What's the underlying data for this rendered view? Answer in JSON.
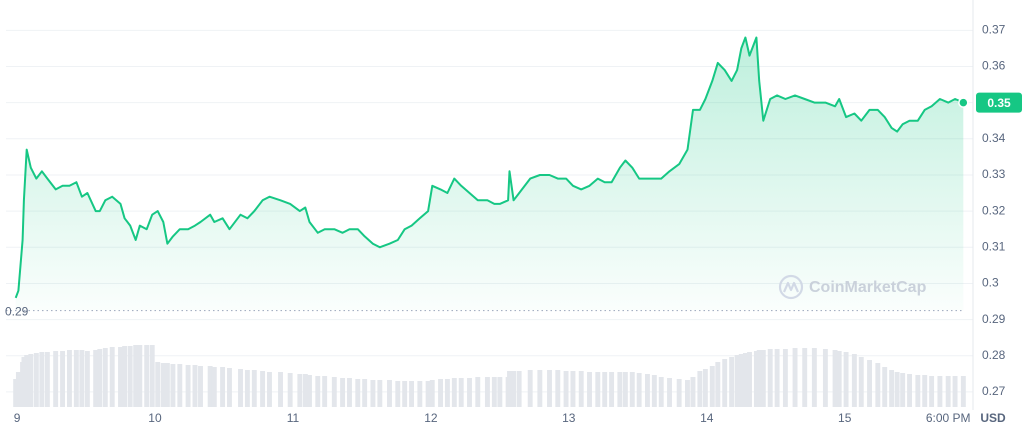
{
  "chart_data": {
    "type": "area",
    "color": "#16c784",
    "x": [
      8.99,
      9.01,
      9.04,
      9.05,
      9.07,
      9.1,
      9.14,
      9.18,
      9.22,
      9.28,
      9.33,
      9.38,
      9.43,
      9.47,
      9.51,
      9.57,
      9.6,
      9.64,
      9.69,
      9.75,
      9.78,
      9.82,
      9.86,
      9.89,
      9.94,
      9.98,
      10.02,
      10.06,
      10.09,
      10.13,
      10.18,
      10.24,
      10.29,
      10.33,
      10.4,
      10.43,
      10.49,
      10.54,
      10.62,
      10.67,
      10.72,
      10.78,
      10.83,
      10.91,
      10.98,
      11.05,
      11.09,
      11.12,
      11.18,
      11.23,
      11.3,
      11.36,
      11.41,
      11.47,
      11.52,
      11.58,
      11.63,
      11.7,
      11.76,
      11.81,
      11.86,
      11.92,
      11.98,
      12.01,
      12.07,
      12.12,
      12.17,
      12.22,
      12.28,
      12.34,
      12.41,
      12.46,
      12.5,
      12.56,
      12.57,
      12.6,
      12.64,
      12.72,
      12.79,
      12.86,
      12.92,
      12.98,
      13.03,
      13.09,
      13.15,
      13.21,
      13.26,
      13.31,
      13.37,
      13.41,
      13.46,
      13.51,
      13.57,
      13.62,
      13.67,
      13.73,
      13.8,
      13.86,
      13.9,
      13.95,
      13.99,
      14.04,
      14.08,
      14.13,
      14.18,
      14.22,
      14.25,
      14.28,
      14.31,
      14.36,
      14.38,
      14.41,
      14.46,
      14.51,
      14.57,
      14.64,
      14.71,
      14.78,
      14.86,
      14.93,
      14.96,
      15.01,
      15.07,
      15.12,
      15.18,
      15.24,
      15.29,
      15.34,
      15.38,
      15.42,
      15.47,
      15.53,
      15.58,
      15.63,
      15.69,
      15.75,
      15.8,
      15.86
    ],
    "values": [
      0.296,
      0.298,
      0.312,
      0.323,
      0.337,
      0.332,
      0.329,
      0.331,
      0.329,
      0.326,
      0.327,
      0.327,
      0.328,
      0.324,
      0.325,
      0.32,
      0.32,
      0.323,
      0.324,
      0.322,
      0.318,
      0.316,
      0.312,
      0.316,
      0.315,
      0.319,
      0.32,
      0.317,
      0.311,
      0.313,
      0.315,
      0.315,
      0.316,
      0.317,
      0.319,
      0.317,
      0.318,
      0.315,
      0.319,
      0.318,
      0.32,
      0.323,
      0.324,
      0.323,
      0.322,
      0.32,
      0.321,
      0.317,
      0.314,
      0.315,
      0.315,
      0.314,
      0.315,
      0.315,
      0.313,
      0.311,
      0.31,
      0.311,
      0.312,
      0.315,
      0.316,
      0.318,
      0.32,
      0.327,
      0.326,
      0.325,
      0.329,
      0.327,
      0.325,
      0.323,
      0.323,
      0.322,
      0.322,
      0.323,
      0.331,
      0.323,
      0.325,
      0.329,
      0.33,
      0.33,
      0.329,
      0.329,
      0.327,
      0.326,
      0.327,
      0.329,
      0.328,
      0.328,
      0.332,
      0.334,
      0.332,
      0.329,
      0.329,
      0.329,
      0.329,
      0.331,
      0.333,
      0.337,
      0.348,
      0.348,
      0.351,
      0.356,
      0.361,
      0.359,
      0.356,
      0.359,
      0.365,
      0.368,
      0.363,
      0.368,
      0.356,
      0.345,
      0.351,
      0.352,
      0.351,
      0.352,
      0.351,
      0.35,
      0.35,
      0.349,
      0.351,
      0.346,
      0.347,
      0.345,
      0.348,
      0.348,
      0.346,
      0.343,
      0.342,
      0.344,
      0.345,
      0.345,
      0.348,
      0.349,
      0.351,
      0.35,
      0.351,
      0.35
    ],
    "volume": [
      28,
      35,
      45,
      50,
      52,
      53,
      54,
      55,
      55,
      56,
      56,
      57,
      57,
      57,
      56,
      57,
      58,
      59,
      60,
      60,
      61,
      61,
      62,
      62,
      62,
      62,
      45,
      44,
      44,
      43,
      43,
      42,
      42,
      41,
      41,
      40,
      40,
      39,
      38,
      37,
      37,
      36,
      35,
      35,
      34,
      33,
      33,
      32,
      31,
      31,
      30,
      29,
      29,
      28,
      28,
      27,
      27,
      27,
      26,
      26,
      26,
      26,
      26,
      27,
      28,
      28,
      29,
      29,
      29,
      30,
      30,
      30,
      30,
      30,
      36,
      36,
      36,
      37,
      37,
      37,
      37,
      36,
      36,
      36,
      35,
      35,
      35,
      35,
      35,
      35,
      35,
      34,
      33,
      32,
      30,
      29,
      28,
      27,
      30,
      36,
      38,
      41,
      45,
      48,
      50,
      52,
      53,
      54,
      55,
      56,
      57,
      57,
      58,
      58,
      58,
      59,
      59,
      59,
      58,
      57,
      56,
      55,
      53,
      50,
      47,
      44,
      40,
      37,
      35,
      34,
      33,
      32,
      32,
      31,
      31,
      31,
      31,
      31
    ],
    "xlim": [
      8.92,
      15.93
    ],
    "xticks": [
      9,
      10,
      11,
      12,
      13,
      14,
      15,
      {
        "value": 15.75,
        "label": "6:00 PM"
      }
    ],
    "ylim": [
      0.265,
      0.377
    ],
    "yticks": [
      0.27,
      0.28,
      0.29,
      0.3,
      0.31,
      0.32,
      0.33,
      0.34,
      0.35,
      0.36,
      0.37
    ],
    "grid": true,
    "unit": "USD",
    "low_line": {
      "value": 0.2925,
      "label": "0.29"
    },
    "last_label": "0.35",
    "watermark": "CoinMarketCap"
  }
}
